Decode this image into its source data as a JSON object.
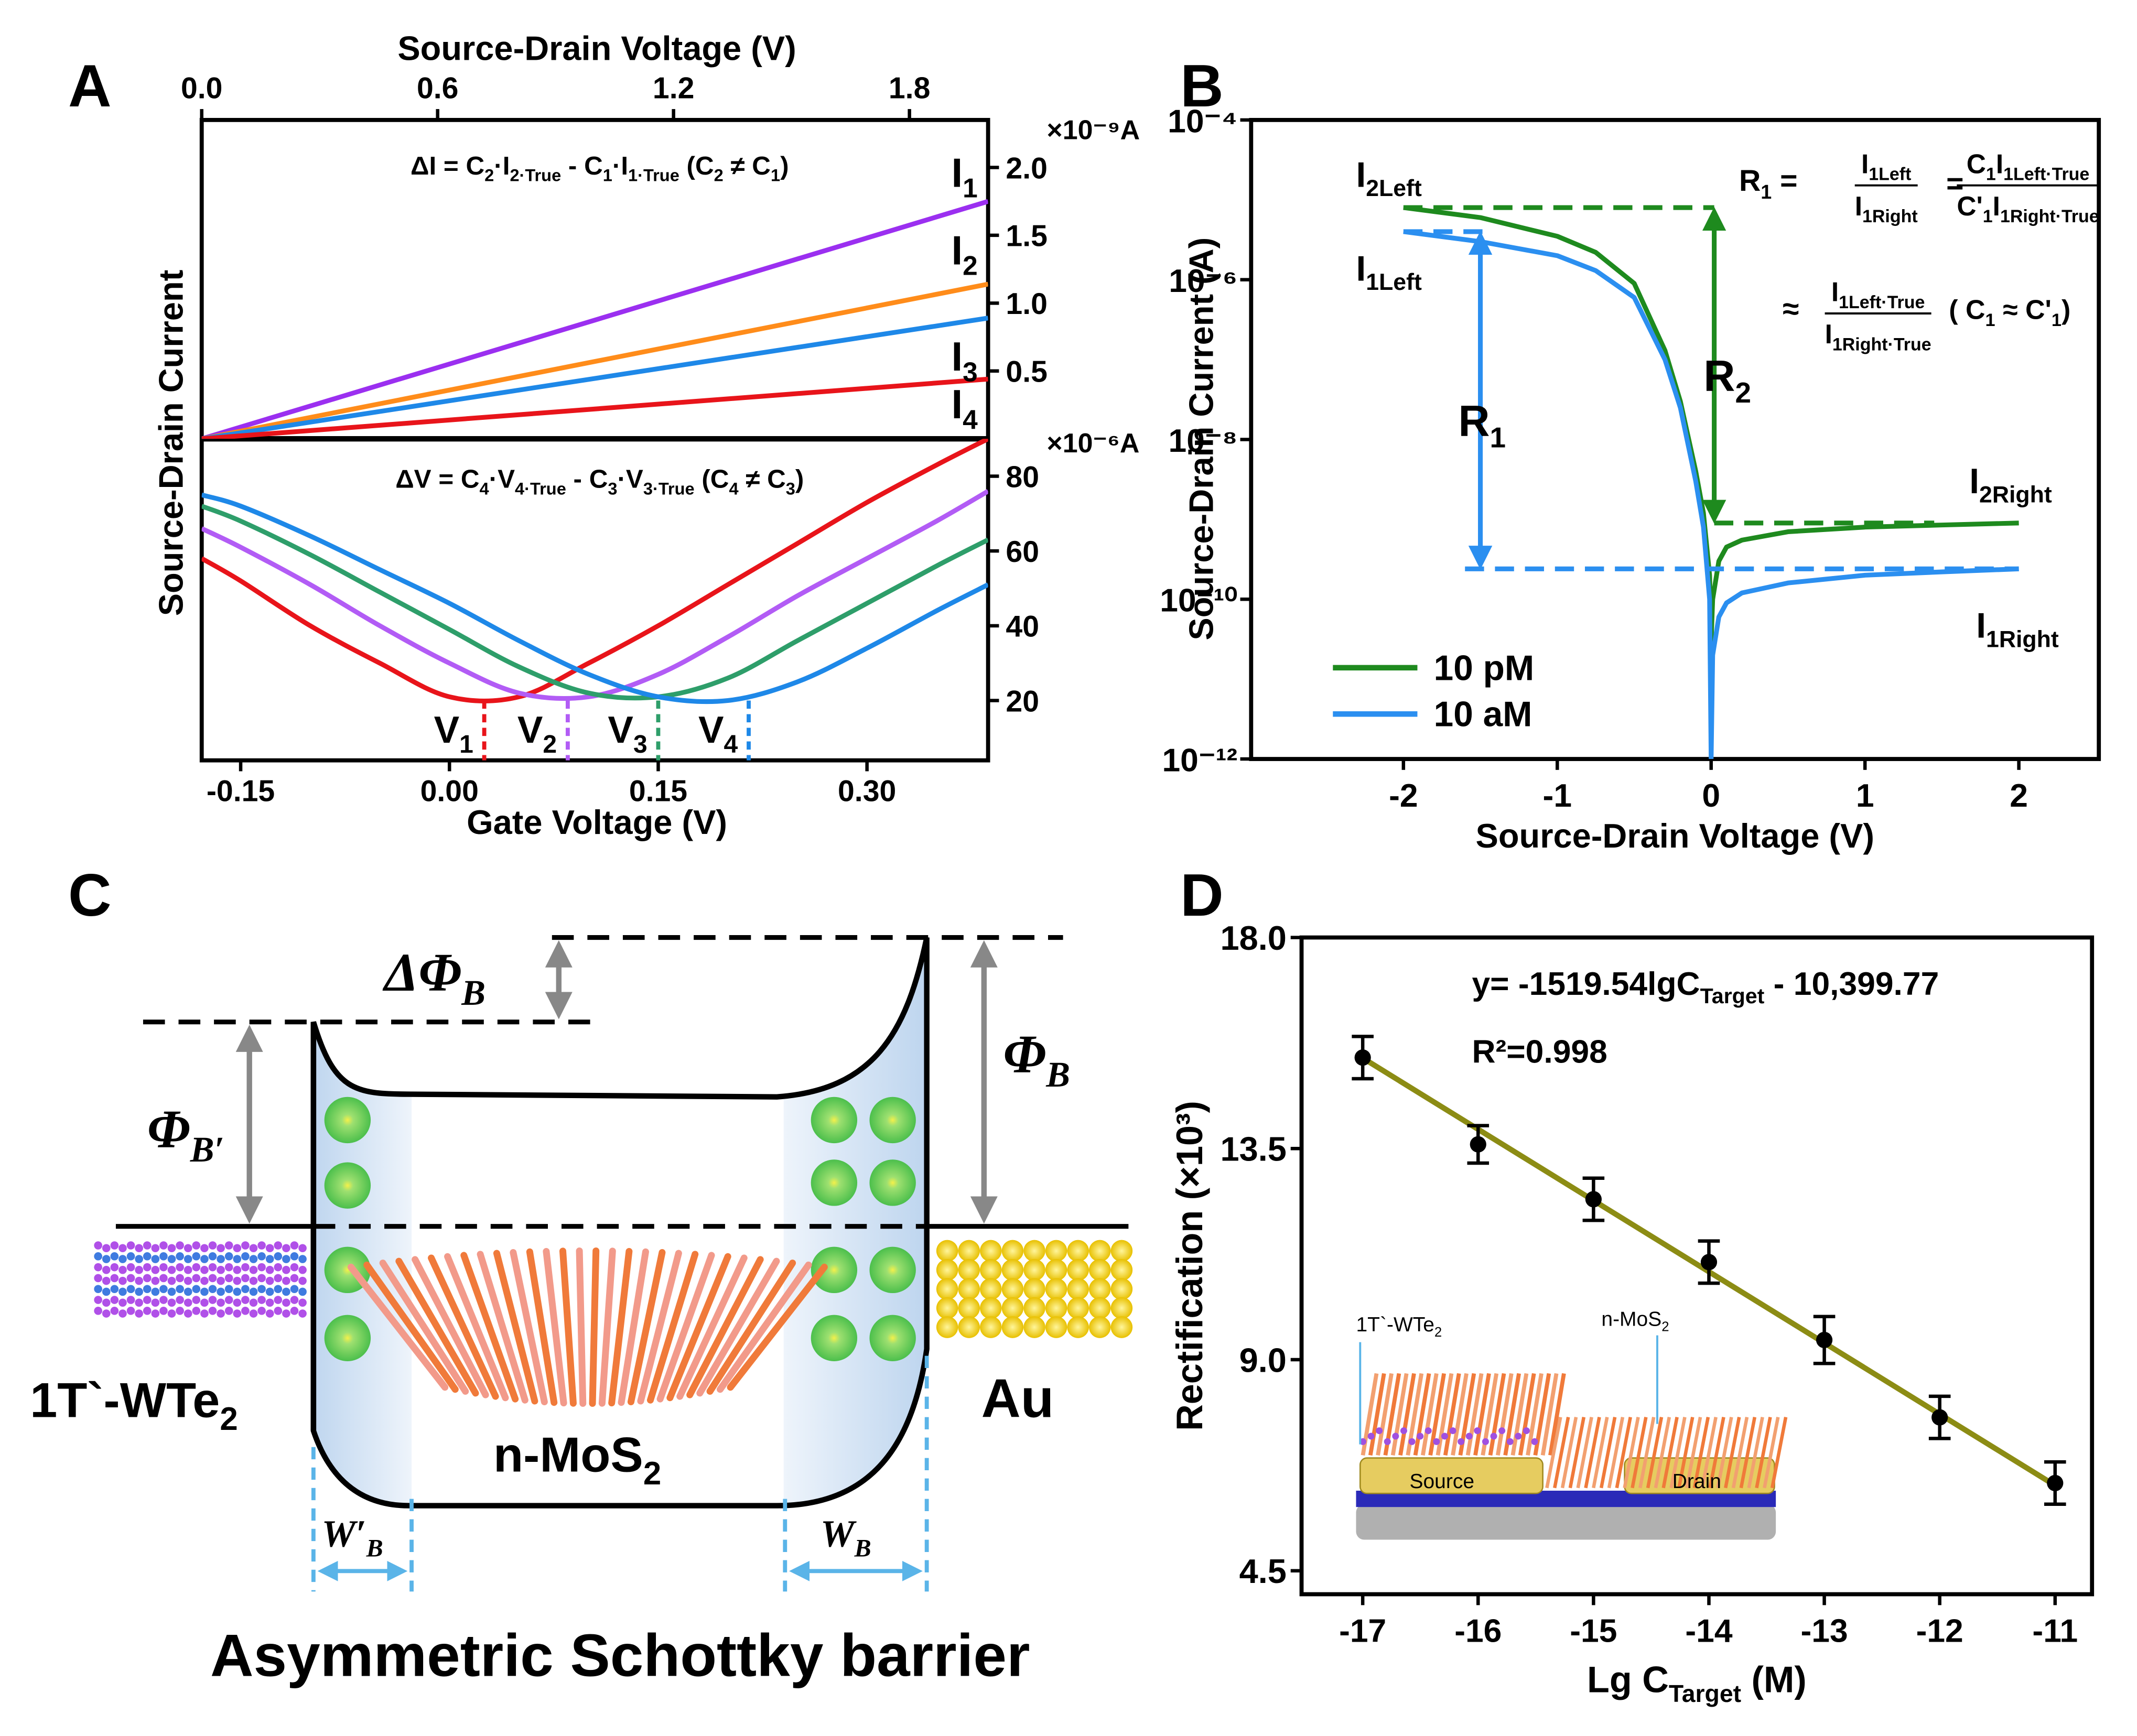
{
  "panels": [
    "A",
    "B",
    "C",
    "D"
  ],
  "chart_data": [
    {
      "type": "line",
      "x_label": "Source-Drain Voltage (V)",
      "y_label": "Source-Drain Current",
      "y2_unit": "×10⁻⁹A",
      "annotation": [
        {
          "text": "ΔI = C",
          "sub": "2"
        },
        {
          "text": "·I",
          "sub": "2·True"
        },
        {
          "text": " - C",
          "sub": "1"
        },
        {
          "text": "·I",
          "sub": "1·True"
        },
        {
          "text": "  (C",
          "sub": "2"
        },
        {
          "text": " ≠ C",
          "sub": "1"
        },
        {
          "text": ")"
        }
      ],
      "xlim": [
        0,
        2.0
      ],
      "xticks": [
        {
          "value": 0,
          "label": "0.0"
        },
        0.6,
        1.2,
        1.8
      ],
      "y2lim": [
        0,
        2.35
      ],
      "y2ticks": [
        0.5,
        {
          "value": 1,
          "label": "1.0"
        },
        1.5,
        {
          "value": 2,
          "label": "2.0"
        }
      ],
      "x": [
        0,
        2.0
      ],
      "series": [
        {
          "name": {
            "text": "I",
            "sub": "1"
          },
          "color": "#9b2ff0",
          "axis": "y2",
          "values": [
            0,
            1.75
          ]
        },
        {
          "name": {
            "text": "I",
            "sub": "2"
          },
          "color": "#ff8c1a",
          "axis": "y2",
          "values": [
            0,
            1.14
          ]
        },
        {
          "name": {
            "text": "I",
            "sub": "3"
          },
          "color": "#1e88e8",
          "axis": "y2",
          "values": [
            0,
            0.89
          ]
        },
        {
          "name": {
            "text": "I",
            "sub": "4"
          },
          "color": "#e8141a",
          "axis": "y2",
          "values": [
            0,
            0.44
          ]
        }
      ]
    },
    {
      "type": "line",
      "x_label": "Gate Voltage (V)",
      "y2_unit": "×10⁻⁶A",
      "annotation": [
        {
          "text": "ΔV = C",
          "sub": "4"
        },
        {
          "text": "·V",
          "sub": "4·True"
        },
        {
          "text": " - C",
          "sub": "3"
        },
        {
          "text": "·V",
          "sub": "3·True"
        },
        {
          "text": "  (C",
          "sub": "4"
        },
        {
          "text": " ≠ C",
          "sub": "3"
        },
        {
          "text": ")"
        }
      ],
      "xlim": [
        -0.178,
        0.387
      ],
      "xticks": [
        -0.15,
        {
          "value": 0,
          "label": "0.00"
        },
        0.15,
        {
          "value": 0.3,
          "label": "0.30"
        }
      ],
      "y2lim": [
        4,
        90
      ],
      "y2ticks": [
        20,
        40,
        60,
        80
      ],
      "x": [
        -0.178,
        -0.15,
        -0.1,
        -0.05,
        0,
        0.05,
        0.1,
        0.15,
        0.2,
        0.25,
        0.3,
        0.35,
        0.387
      ],
      "series": [
        {
          "color": "#e8141a",
          "axis": "y2",
          "values": [
            58,
            52,
            40,
            30,
            21,
            21,
            30,
            40,
            51,
            62,
            73,
            83,
            90
          ]
        },
        {
          "color": "#b25cf5",
          "axis": "y2",
          "values": [
            66,
            61,
            51,
            40,
            30,
            22,
            21,
            27,
            37,
            48,
            58,
            68,
            76
          ]
        },
        {
          "color": "#2e9e6a",
          "axis": "y2",
          "values": [
            72,
            68,
            59,
            49,
            39,
            29,
            22,
            21,
            26,
            36,
            46,
            56,
            63
          ]
        },
        {
          "color": "#1e88e8",
          "axis": "y2",
          "values": [
            75,
            72,
            64,
            55,
            46,
            36,
            27,
            21,
            20,
            25,
            34,
            44,
            51
          ]
        }
      ],
      "markers": [
        {
          "label": {
            "text": "V",
            "sub": "1"
          },
          "x": 0.025,
          "value": 20
        },
        {
          "label": {
            "text": "V",
            "sub": "2"
          },
          "x": 0.085,
          "value": 20
        },
        {
          "label": {
            "text": "V",
            "sub": "3"
          },
          "x": 0.15,
          "value": 20
        },
        {
          "label": {
            "text": "V",
            "sub": "4"
          },
          "x": 0.215,
          "value": 20
        }
      ]
    },
    {
      "type": "line",
      "log_y": true,
      "x_label": "Source-Drain Voltage (V)",
      "y_label": "Source-Drain Current (A)",
      "xlim": [
        -2.99,
        2.52
      ],
      "xticks": [
        -2,
        -1,
        0,
        1,
        2
      ],
      "ylim": [
        1e-12,
        0.0001
      ],
      "yticks": [
        {
          "value": 1e-12,
          "label": "10⁻¹²"
        },
        {
          "value": 1e-10,
          "label": "10⁻¹⁰"
        },
        {
          "value": 1e-08,
          "label": "10⁻⁸"
        },
        {
          "value": 1e-06,
          "label": "10⁻⁶"
        },
        {
          "value": 0.0001,
          "label": "10⁻⁴"
        }
      ],
      "legend": "lower left",
      "x": [
        -2,
        -1.5,
        -1,
        -0.75,
        -0.5,
        -0.3,
        -0.2,
        -0.1,
        -0.05,
        -0.01,
        0,
        0.01,
        0.05,
        0.1,
        0.2,
        0.5,
        1,
        1.5,
        2
      ],
      "series": [
        {
          "name": "10 pM",
          "color": "#1e8a1e",
          "values": [
            8e-06,
            6e-06,
            3.5e-06,
            2.2e-06,
            9e-07,
            1.3e-07,
            3e-08,
            4e-09,
            1.2e-09,
            2e-10,
            3e-11,
            1e-10,
            3e-10,
            4.5e-10,
            5.5e-10,
            7e-10,
            8e-10,
            8.5e-10,
            9e-10
          ]
        },
        {
          "name": "10 aM",
          "color": "#2b8ff0",
          "values": [
            4e-06,
            3e-06,
            2e-06,
            1.3e-06,
            6e-07,
            1e-07,
            2.5e-08,
            3e-09,
            8e-10,
            1e-10,
            1e-12,
            2e-11,
            6e-11,
            9e-11,
            1.2e-10,
            1.6e-10,
            2e-10,
            2.2e-10,
            2.4e-10
          ]
        }
      ],
      "levels": [
        {
          "label": {
            "text": "I",
            "sub": "2Left"
          },
          "value": 8e-06,
          "x": [
            -2,
            0.02
          ],
          "color": "#1e8a1e"
        },
        {
          "label": {
            "text": "I",
            "sub": "1Left"
          },
          "value": 4e-06,
          "x": [
            -2,
            -1.45
          ],
          "color": "#2b8ff0"
        },
        {
          "label": {
            "text": "I",
            "sub": "2Right"
          },
          "value": 9e-10,
          "x": [
            0.02,
            1.45
          ],
          "color": "#1e8a1e"
        },
        {
          "label": {
            "text": "I",
            "sub": "1Right"
          },
          "value": 2.4e-10,
          "x": [
            -1.6,
            2
          ],
          "color": "#2b8ff0"
        }
      ],
      "arrows": [
        {
          "label": {
            "text": "R",
            "sub": "2"
          },
          "x": 0.02,
          "values": [
            8e-06,
            9e-10
          ],
          "color": "#1e8a1e"
        },
        {
          "label": {
            "text": "R",
            "sub": "1"
          },
          "x": -1.5,
          "values": [
            4e-06,
            2.4e-10
          ],
          "color": "#2b8ff0"
        }
      ],
      "formula": {
        "lhs": [
          {
            "text": "R",
            "sub": "1"
          },
          {
            "text": " ="
          }
        ],
        "frac1": {
          "num": [
            {
              "text": "I",
              "sub": "1Left"
            }
          ],
          "den": [
            {
              "text": "I",
              "sub": "1Right"
            }
          ]
        },
        "eq": "=",
        "frac2": {
          "num": [
            {
              "text": "C",
              "sub": "1"
            },
            {
              "text": "I",
              "sub": "1Left·True"
            }
          ],
          "den": [
            {
              "text": "C'",
              "sub": "1"
            },
            {
              "text": "I",
              "sub": "1Right·True"
            }
          ]
        },
        "approx": "≈",
        "frac3": {
          "num": [
            {
              "text": "I",
              "sub": "1Left·True"
            }
          ],
          "den": [
            {
              "text": "I",
              "sub": "1Right·True"
            }
          ]
        },
        "cond": [
          {
            "text": "( C",
            "sub": "1"
          },
          {
            "text": " ≈ C'",
            "sub": "1"
          },
          {
            "text": ")"
          }
        ]
      }
    },
    {
      "type": "scatter",
      "x_label": [
        {
          "text": "Lg C",
          "sub": "Target"
        },
        {
          "text": " (M)"
        }
      ],
      "y_label": "Rectification (×10³)",
      "xlim": [
        -17.53,
        -10.68
      ],
      "xticks": [
        -17,
        -16,
        -15,
        -14,
        -13,
        -12,
        -11
      ],
      "ylim": [
        4,
        18
      ],
      "yticks": [
        4.5,
        {
          "value": 9,
          "label": "9.0"
        },
        13.5,
        {
          "value": 18,
          "label": "18.0"
        }
      ],
      "x": [
        -17,
        -16,
        -15,
        -14,
        -13,
        -12,
        -11
      ],
      "values": [
        15.44,
        13.59,
        12.42,
        11.08,
        9.42,
        7.77,
        6.37
      ],
      "errors": [
        0.45,
        0.4,
        0.45,
        0.45,
        0.5,
        0.45,
        0.45
      ],
      "color": "#000000",
      "fit": {
        "x": [
          -17,
          -11
        ],
        "values": [
          15.43,
          6.32
        ],
        "color": "#8c8c14"
      },
      "equation": [
        {
          "text": "y= -1519.54lgC",
          "sub": "Target"
        },
        {
          "text": " - 10,399.77"
        }
      ],
      "r2": "R²=0.998",
      "inset": {
        "left": {
          "text": "1T`-WTe",
          "sub": "2"
        },
        "right": {
          "text": "n-MoS",
          "sub": "2"
        },
        "source": "Source",
        "drain": "Drain"
      }
    }
  ],
  "diagram": {
    "delta_phi": {
      "text": "ΔΦ",
      "sub": "B"
    },
    "phi_left": {
      "text": "Φ",
      "sub": "B′"
    },
    "phi_right": {
      "text": "Φ",
      "sub": "B"
    },
    "left_metal": {
      "text": "1T`-WTe",
      "sub": "2"
    },
    "semiconductor": {
      "text": "n-MoS",
      "sub": "2"
    },
    "right_metal": "Au",
    "w_left": {
      "text": "W′",
      "sub": "B"
    },
    "w_right": {
      "text": "W",
      "sub": "B"
    },
    "caption": "Asymmetric Schottky barrier"
  }
}
